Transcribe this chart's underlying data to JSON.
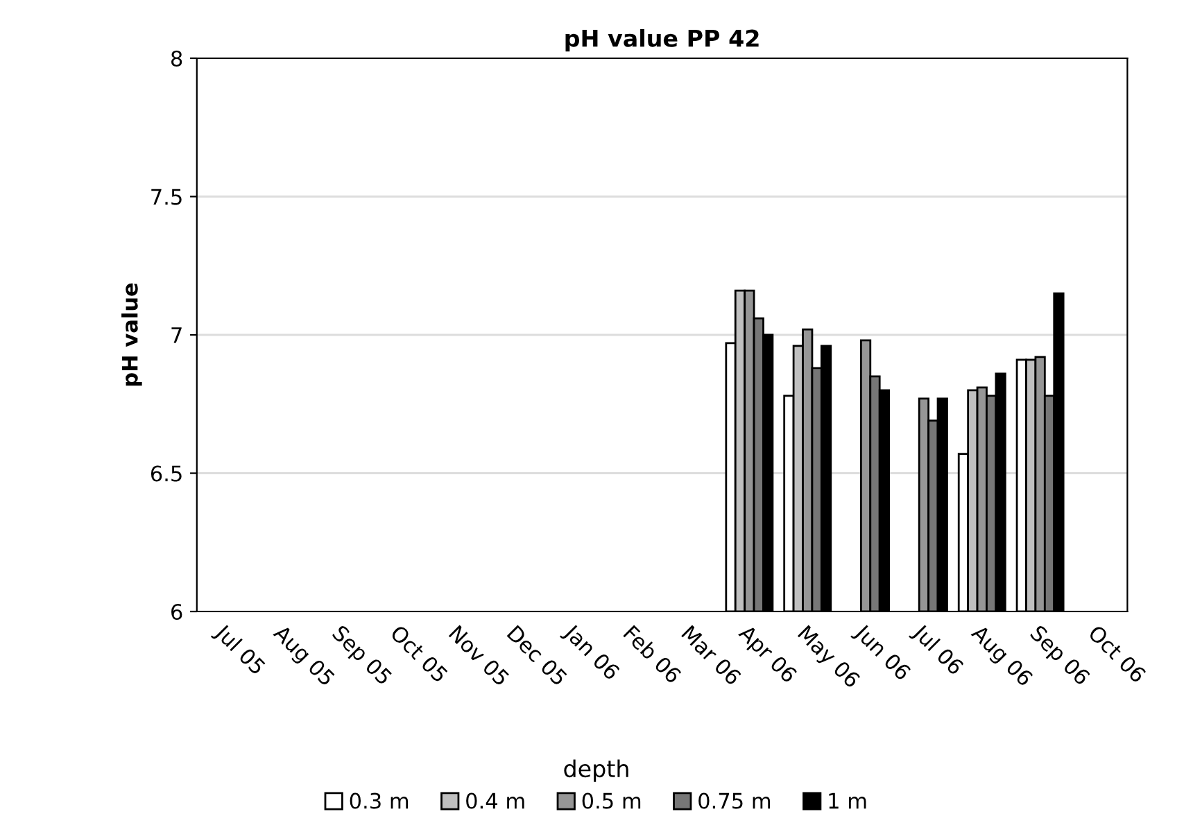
{
  "chart_data": {
    "type": "bar",
    "title": "pH value PP 42",
    "ylabel": "pH value",
    "legend_title": "depth",
    "categories": [
      "Jul 05",
      "Aug 05",
      "Sep 05",
      "Oct 05",
      "Nov 05",
      "Dec 05",
      "Jan 06",
      "Feb 06",
      "Mar 06",
      "Apr 06",
      "May 06",
      "Jun 06",
      "Jul 06",
      "Aug 06",
      "Sep 06",
      "Oct 06"
    ],
    "series": [
      {
        "name": "0.3 m",
        "color": "#ffffff",
        "values": [
          null,
          null,
          null,
          null,
          null,
          null,
          null,
          null,
          null,
          6.97,
          6.78,
          null,
          null,
          6.57,
          6.91,
          null
        ]
      },
      {
        "name": "0.4 m",
        "color": "#c0c0c0",
        "values": [
          null,
          null,
          null,
          null,
          null,
          null,
          null,
          null,
          null,
          7.16,
          6.96,
          null,
          null,
          6.8,
          6.91,
          null
        ]
      },
      {
        "name": "0.5 m",
        "color": "#969696",
        "values": [
          null,
          null,
          null,
          null,
          null,
          null,
          null,
          null,
          null,
          7.16,
          7.02,
          6.98,
          6.77,
          6.81,
          6.92,
          null
        ]
      },
      {
        "name": "0.75 m",
        "color": "#777777",
        "values": [
          null,
          null,
          null,
          null,
          null,
          null,
          null,
          null,
          null,
          7.06,
          6.88,
          6.85,
          6.69,
          6.78,
          6.78,
          null
        ]
      },
      {
        "name": "1 m",
        "color": "#000000",
        "values": [
          null,
          null,
          null,
          null,
          null,
          null,
          null,
          null,
          null,
          7.0,
          6.96,
          6.8,
          6.77,
          6.86,
          7.15,
          null
        ]
      }
    ],
    "ylim": [
      6,
      8
    ],
    "yticks": [
      6,
      6.5,
      7,
      7.5,
      8
    ],
    "grid": "y",
    "legend": "bottom"
  }
}
